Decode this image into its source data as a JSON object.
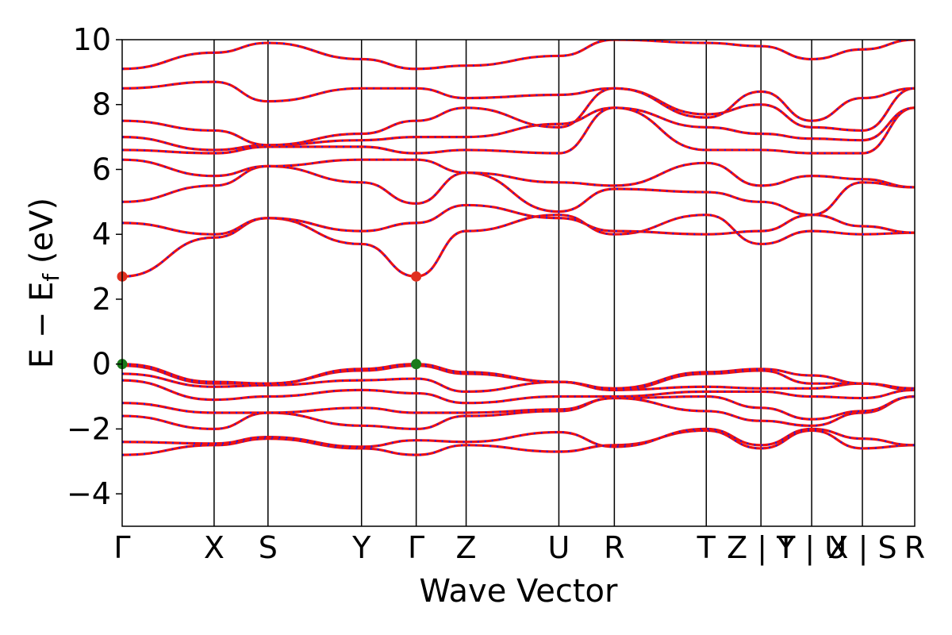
{
  "chart_data": {
    "type": "line",
    "title": "",
    "xlabel": "Wave Vector",
    "ylabel_parts": {
      "main": "E − E",
      "sub": "f",
      "unit": " (eV)"
    },
    "ylim": [
      -5,
      10
    ],
    "xlim": [
      0,
      1.0
    ],
    "yticks": [
      -4,
      -2,
      0,
      2,
      4,
      6,
      8,
      10
    ],
    "ytick_labels": [
      "−4",
      "−2",
      "0",
      "2",
      "4",
      "6",
      "8",
      "10"
    ],
    "kpoints": [
      {
        "label": "Γ",
        "x": 0.0
      },
      {
        "label": "X",
        "x": 0.116
      },
      {
        "label": "S",
        "x": 0.184
      },
      {
        "label": "Y",
        "x": 0.302
      },
      {
        "label": "Γ",
        "x": 0.371
      },
      {
        "label": "Z",
        "x": 0.434
      },
      {
        "label": "U",
        "x": 0.551
      },
      {
        "label": "R",
        "x": 0.621
      },
      {
        "label": "T",
        "x": 0.737
      },
      {
        "label": "Z | Y",
        "x": 0.806
      },
      {
        "label": "T | U",
        "x": 0.87
      },
      {
        "label": "X | S",
        "x": 0.934
      },
      {
        "label": "R",
        "x": 1.0
      }
    ],
    "special_points": [
      {
        "name": "CBM",
        "k": 0.0,
        "E": 2.7,
        "color": "#e03020"
      },
      {
        "name": "CBM",
        "k": 0.371,
        "E": 2.7,
        "color": "#e03020"
      },
      {
        "name": "VBM",
        "k": 0.0,
        "E": 0.0,
        "color": "#1a7a1a"
      },
      {
        "name": "VBM",
        "k": 0.371,
        "E": 0.0,
        "color": "#1a7a1a"
      }
    ],
    "series": [
      {
        "style": "red-solid",
        "x": [
          0,
          0.116,
          0.184,
          0.302,
          0.371,
          0.434,
          0.551,
          0.621,
          0.737,
          0.806,
          0.87,
          0.934,
          1.0
        ],
        "y": [
          -2.8,
          -2.5,
          -2.3,
          -2.6,
          -2.8,
          -2.5,
          -2.7,
          -2.5,
          -2.05,
          -2.6,
          -2.05,
          -2.6,
          -2.5
        ]
      },
      {
        "style": "red-solid",
        "x": [
          0,
          0.116,
          0.184,
          0.302,
          0.371,
          0.434,
          0.551,
          0.621,
          0.737,
          0.806,
          0.87,
          0.934,
          1.0
        ],
        "y": [
          -2.4,
          -2.45,
          -2.25,
          -2.55,
          -2.35,
          -2.4,
          -2.1,
          -2.55,
          -2.0,
          -2.5,
          -2.0,
          -2.3,
          -2.5
        ]
      },
      {
        "style": "red-solid",
        "x": [
          0,
          0.116,
          0.184,
          0.302,
          0.371,
          0.434,
          0.551,
          0.621,
          0.737,
          0.806,
          0.87,
          0.934,
          1.0
        ],
        "y": [
          -1.6,
          -2.0,
          -1.5,
          -1.9,
          -2.0,
          -1.6,
          -1.45,
          -1.05,
          -1.45,
          -1.75,
          -1.9,
          -1.5,
          -1.0
        ]
      },
      {
        "style": "red-solid",
        "x": [
          0,
          0.116,
          0.184,
          0.302,
          0.371,
          0.434,
          0.551,
          0.621,
          0.737,
          0.806,
          0.87,
          0.934,
          1.0
        ],
        "y": [
          -1.2,
          -1.5,
          -1.5,
          -1.35,
          -1.5,
          -1.5,
          -1.4,
          -1.05,
          -1.0,
          -1.35,
          -1.7,
          -1.45,
          -1.0
        ]
      },
      {
        "style": "red-solid",
        "x": [
          0,
          0.116,
          0.184,
          0.302,
          0.371,
          0.434,
          0.551,
          0.621,
          0.737,
          0.806,
          0.87,
          0.934,
          1.0
        ],
        "y": [
          -0.5,
          -1.1,
          -1.0,
          -0.8,
          -0.9,
          -1.2,
          -1.0,
          -1.0,
          -0.85,
          -0.85,
          -1.0,
          -1.05,
          -0.8
        ]
      },
      {
        "style": "red-solid",
        "x": [
          0,
          0.116,
          0.184,
          0.302,
          0.371,
          0.434,
          0.551,
          0.621,
          0.737,
          0.806,
          0.87,
          0.934,
          1.0
        ],
        "y": [
          -0.3,
          -0.7,
          -0.65,
          -0.5,
          -0.45,
          -0.85,
          -0.55,
          -0.8,
          -0.7,
          -0.75,
          -0.75,
          -0.6,
          -0.8
        ]
      },
      {
        "style": "red-solid",
        "x": [
          0,
          0.116,
          0.184,
          0.302,
          0.371,
          0.434,
          0.551,
          0.621,
          0.737,
          0.806,
          0.87,
          0.934,
          1.0
        ],
        "y": [
          -0.05,
          -0.6,
          -0.6,
          -0.2,
          -0.05,
          -0.3,
          -0.55,
          -0.8,
          -0.3,
          -0.2,
          -0.6,
          -0.6,
          -0.8
        ]
      },
      {
        "style": "red-solid",
        "x": [
          0,
          0.116,
          0.184,
          0.302,
          0.371,
          0.434,
          0.551,
          0.621,
          0.737,
          0.806,
          0.87,
          0.934,
          1.0
        ],
        "y": [
          0.0,
          -0.55,
          -0.6,
          -0.15,
          0.0,
          -0.25,
          -0.55,
          -0.75,
          -0.25,
          -0.15,
          -0.35,
          -0.6,
          -0.75
        ]
      },
      {
        "style": "red-solid",
        "x": [
          0,
          0.116,
          0.184,
          0.302,
          0.371,
          0.434,
          0.551,
          0.621,
          0.737,
          0.806,
          0.87,
          0.934,
          1.0
        ],
        "y": [
          2.7,
          3.9,
          4.5,
          3.7,
          2.7,
          4.1,
          4.6,
          4.0,
          4.6,
          3.7,
          4.1,
          4.0,
          4.05
        ]
      },
      {
        "style": "red-solid",
        "x": [
          0,
          0.116,
          0.184,
          0.302,
          0.371,
          0.434,
          0.551,
          0.621,
          0.737,
          0.806,
          0.87,
          0.934,
          1.0
        ],
        "y": [
          4.35,
          4.0,
          4.5,
          4.1,
          4.35,
          4.9,
          4.5,
          4.1,
          4.0,
          4.1,
          4.6,
          4.25,
          4.05
        ]
      },
      {
        "style": "red-solid",
        "x": [
          0,
          0.116,
          0.184,
          0.302,
          0.371,
          0.434,
          0.551,
          0.621,
          0.737,
          0.806,
          0.87,
          0.934,
          1.0
        ],
        "y": [
          5.0,
          5.5,
          6.1,
          5.6,
          4.95,
          5.9,
          4.7,
          5.4,
          5.3,
          5.0,
          4.6,
          5.6,
          5.45
        ]
      },
      {
        "style": "red-solid",
        "x": [
          0,
          0.116,
          0.184,
          0.302,
          0.371,
          0.434,
          0.551,
          0.621,
          0.737,
          0.806,
          0.87,
          0.934,
          1.0
        ],
        "y": [
          6.3,
          5.8,
          6.1,
          6.3,
          6.3,
          5.9,
          5.6,
          5.5,
          6.2,
          5.5,
          5.8,
          5.7,
          5.45
        ]
      },
      {
        "style": "red-solid",
        "x": [
          0,
          0.116,
          0.184,
          0.302,
          0.371,
          0.434,
          0.551,
          0.621,
          0.737,
          0.806,
          0.87,
          0.934,
          1.0
        ],
        "y": [
          6.6,
          6.5,
          6.7,
          6.7,
          6.5,
          6.6,
          6.5,
          7.9,
          6.6,
          6.6,
          6.5,
          6.5,
          7.9
        ]
      },
      {
        "style": "red-solid",
        "x": [
          0,
          0.116,
          0.184,
          0.302,
          0.371,
          0.434,
          0.551,
          0.621,
          0.737,
          0.806,
          0.87,
          0.934,
          1.0
        ],
        "y": [
          7.0,
          6.6,
          6.75,
          6.9,
          7.0,
          7.0,
          7.4,
          7.9,
          7.3,
          7.1,
          6.95,
          6.9,
          7.9
        ]
      },
      {
        "style": "red-solid",
        "x": [
          0,
          0.116,
          0.184,
          0.302,
          0.371,
          0.434,
          0.551,
          0.621,
          0.737,
          0.806,
          0.87,
          0.934,
          1.0
        ],
        "y": [
          7.5,
          7.2,
          6.75,
          7.1,
          7.5,
          7.9,
          7.3,
          8.5,
          7.7,
          8.0,
          7.3,
          7.2,
          8.5
        ]
      },
      {
        "style": "red-solid",
        "x": [
          0,
          0.116,
          0.184,
          0.302,
          0.371,
          0.434,
          0.551,
          0.621,
          0.737,
          0.806,
          0.87,
          0.934,
          1.0
        ],
        "y": [
          8.5,
          8.7,
          8.1,
          8.5,
          8.5,
          8.2,
          8.3,
          8.5,
          7.6,
          8.4,
          7.5,
          8.2,
          8.5
        ]
      },
      {
        "style": "red-solid",
        "x": [
          0,
          0.116,
          0.184,
          0.302,
          0.371,
          0.434,
          0.551,
          0.621,
          0.737,
          0.806,
          0.87,
          0.934,
          1.0
        ],
        "y": [
          9.1,
          9.6,
          9.9,
          9.4,
          9.1,
          9.2,
          9.5,
          10.0,
          9.9,
          9.8,
          9.4,
          9.7,
          10.0
        ]
      }
    ]
  }
}
